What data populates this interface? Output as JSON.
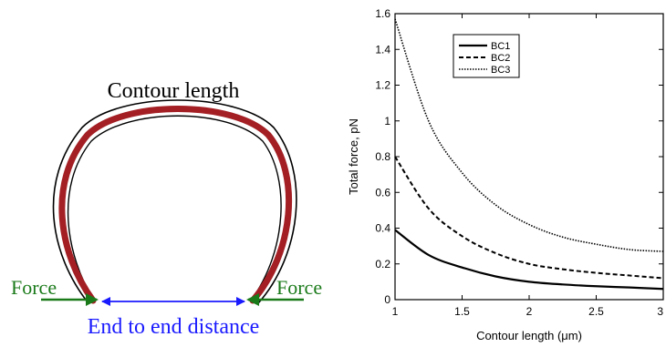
{
  "diagram": {
    "contour_label": "Contour length",
    "force_left_label": "Force",
    "force_right_label": "Force",
    "end_to_end_label": "End to end distance",
    "colors": {
      "filament": "#a31f24",
      "outline": "#000000",
      "force": "#1a7a1a",
      "distance": "#1a1aff"
    }
  },
  "chart_data": {
    "type": "line",
    "xlabel": "Contour length (μm)",
    "ylabel": "Total force, pN",
    "xlim": [
      1,
      3
    ],
    "ylim": [
      0,
      1.6
    ],
    "xticks": [
      "1",
      "1.5",
      "2",
      "2.5",
      "3"
    ],
    "yticks": [
      "0",
      "0.2",
      "0.4",
      "0.6",
      "0.8",
      "1",
      "1.2",
      "1.4",
      "1.6"
    ],
    "grid": false,
    "legend_position": "top-left",
    "series": [
      {
        "name": "BC1",
        "style": "solid",
        "x": [
          1,
          1.25,
          1.5,
          1.75,
          2,
          2.25,
          2.5,
          2.75,
          3
        ],
        "y": [
          0.39,
          0.25,
          0.18,
          0.13,
          0.1,
          0.085,
          0.075,
          0.068,
          0.06
        ]
      },
      {
        "name": "BC2",
        "style": "dashed",
        "x": [
          1,
          1.25,
          1.5,
          1.75,
          2,
          2.25,
          2.5,
          2.75,
          3
        ],
        "y": [
          0.8,
          0.51,
          0.355,
          0.26,
          0.2,
          0.17,
          0.15,
          0.135,
          0.12
        ]
      },
      {
        "name": "BC3",
        "style": "dotted",
        "x": [
          1,
          1.25,
          1.5,
          1.75,
          2,
          2.25,
          2.5,
          2.75,
          3
        ],
        "y": [
          1.57,
          1.0,
          0.71,
          0.53,
          0.42,
          0.35,
          0.31,
          0.28,
          0.27
        ]
      }
    ]
  }
}
